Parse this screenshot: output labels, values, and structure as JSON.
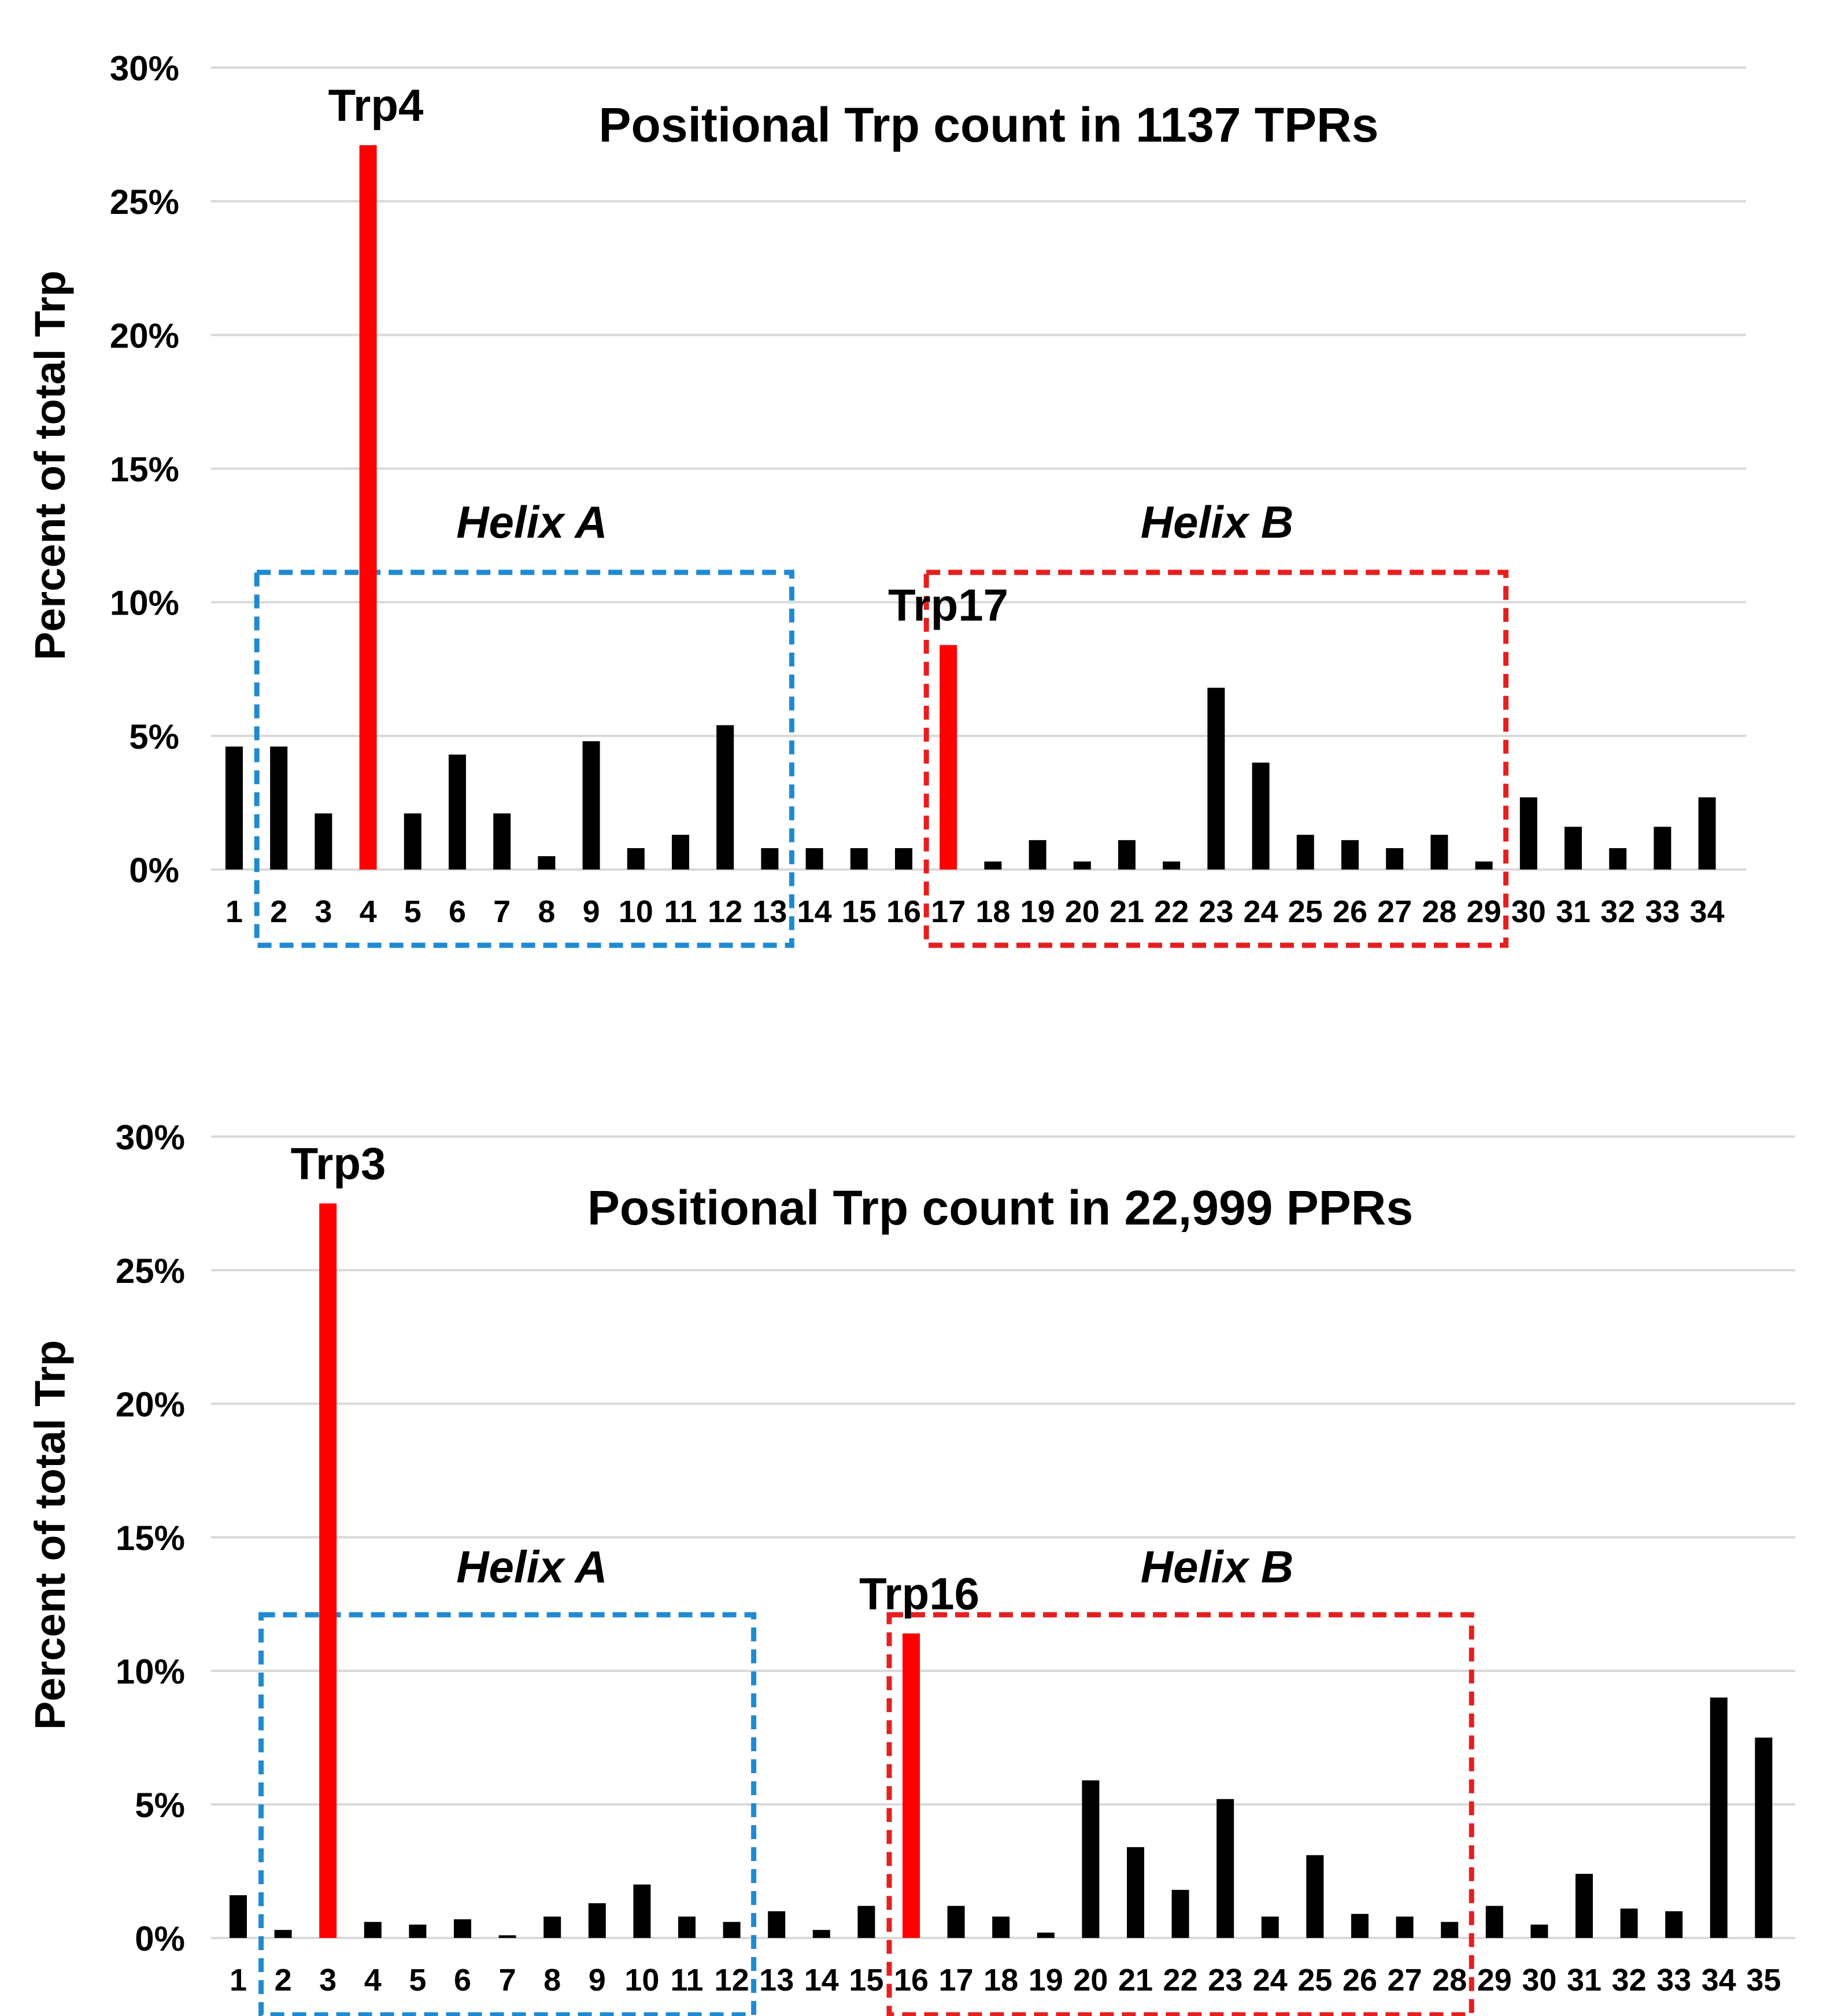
{
  "chart_data": [
    {
      "type": "bar",
      "title": "Positional Trp count in 1137 TPRs",
      "ylabel": "Percent of total Trp",
      "xlabel": "",
      "ylim": [
        0,
        30
      ],
      "ytick_values": [
        0,
        5,
        10,
        15,
        20,
        25,
        30
      ],
      "ytick_labels": [
        "0%",
        "5%",
        "10%",
        "15%",
        "20%",
        "25%",
        "30%"
      ],
      "grid": true,
      "categories": [
        "1",
        "2",
        "3",
        "4",
        "5",
        "6",
        "7",
        "8",
        "9",
        "10",
        "11",
        "12",
        "13",
        "14",
        "15",
        "16",
        "17",
        "18",
        "19",
        "20",
        "21",
        "22",
        "23",
        "24",
        "25",
        "26",
        "27",
        "28",
        "29",
        "30",
        "31",
        "32",
        "33",
        "34"
      ],
      "values": [
        4.6,
        4.6,
        2.1,
        27.1,
        2.1,
        4.3,
        2.1,
        0.5,
        4.8,
        0.8,
        1.3,
        5.4,
        0.8,
        0.8,
        0.8,
        0.8,
        8.4,
        0.3,
        1.1,
        0.3,
        1.1,
        0.3,
        6.8,
        4.0,
        1.3,
        1.1,
        0.8,
        1.3,
        0.3,
        2.7,
        1.6,
        0.8,
        1.6,
        2.7
      ],
      "highlight_color": "#ff0000",
      "bar_color": "#000000",
      "annotations": [
        {
          "text": "Trp4",
          "category": "4",
          "value": 27.1
        },
        {
          "text": "Trp17",
          "category": "17",
          "value": 8.4
        }
      ],
      "regions": [
        {
          "label": "Helix A",
          "from": "2",
          "to": "13",
          "color": "#1f8ad2"
        },
        {
          "label": "Helix B",
          "from": "17",
          "to": "29",
          "color": "#e61e1e"
        }
      ]
    },
    {
      "type": "bar",
      "title": "Positional Trp count in 22,999 PPRs",
      "ylabel": "Percent of total Trp",
      "xlabel": "",
      "ylim": [
        0,
        30
      ],
      "ytick_values": [
        0,
        5,
        10,
        15,
        20,
        25,
        30
      ],
      "ytick_labels": [
        "0%",
        "5%",
        "10%",
        "15%",
        "20%",
        "25%",
        "30%"
      ],
      "grid": true,
      "categories": [
        "1",
        "2",
        "3",
        "4",
        "5",
        "6",
        "7",
        "8",
        "9",
        "10",
        "11",
        "12",
        "13",
        "14",
        "15",
        "16",
        "17",
        "18",
        "19",
        "20",
        "21",
        "22",
        "23",
        "24",
        "25",
        "26",
        "27",
        "28",
        "29",
        "30",
        "31",
        "32",
        "33",
        "34",
        "35"
      ],
      "values": [
        1.6,
        0.3,
        27.5,
        0.6,
        0.5,
        0.7,
        0.1,
        0.8,
        1.3,
        2.0,
        0.8,
        0.6,
        1.0,
        0.3,
        1.2,
        11.4,
        1.2,
        0.8,
        0.2,
        5.9,
        3.4,
        1.8,
        5.2,
        0.8,
        3.1,
        0.9,
        0.8,
        0.6,
        1.2,
        0.5,
        2.4,
        1.1,
        1.0,
        9.0,
        7.5
      ],
      "highlight_color": "#ff0000",
      "bar_color": "#000000",
      "annotations": [
        {
          "text": "Trp3",
          "category": "3",
          "value": 27.5
        },
        {
          "text": "Trp16",
          "category": "16",
          "value": 11.4
        }
      ],
      "regions": [
        {
          "label": "Helix A",
          "from": "2",
          "to": "12",
          "color": "#1f8ad2"
        },
        {
          "label": "Helix B",
          "from": "16",
          "to": "28",
          "color": "#e61e1e"
        }
      ]
    }
  ]
}
